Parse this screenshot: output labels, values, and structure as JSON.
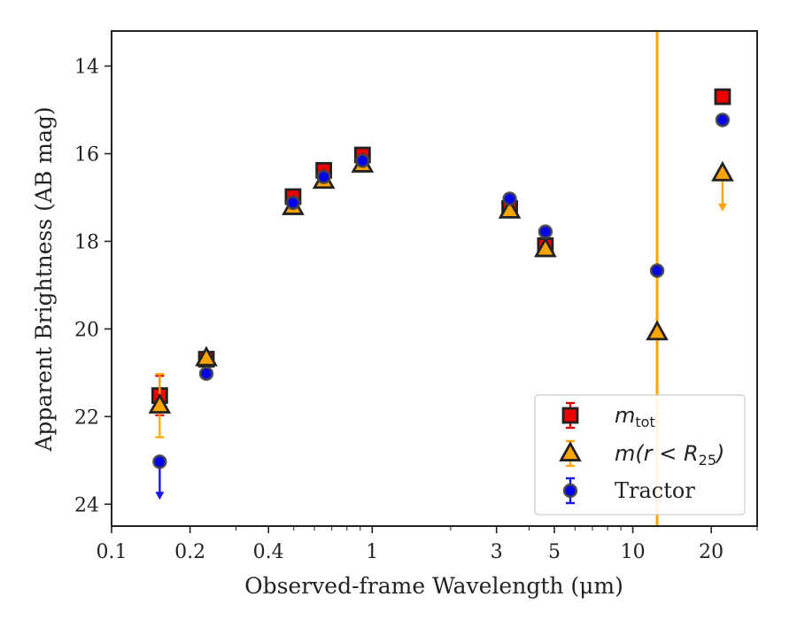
{
  "chart_data": {
    "type": "scatter",
    "xlabel": "Observed-frame Wavelength (μm)",
    "ylabel": "Apparent Brightness (AB mag)",
    "xscale": "log",
    "xlim": [
      0.1,
      30
    ],
    "ylim": [
      24.5,
      13.2
    ],
    "y_inverted": true,
    "xticks": [
      {
        "value": 0.1,
        "label": "0.1"
      },
      {
        "value": 0.2,
        "label": "0.2"
      },
      {
        "value": 0.4,
        "label": "0.4"
      },
      {
        "value": 1,
        "label": "1"
      },
      {
        "value": 3,
        "label": "3"
      },
      {
        "value": 5,
        "label": "5"
      },
      {
        "value": 10,
        "label": "10"
      },
      {
        "value": 20,
        "label": "20"
      }
    ],
    "yticks": [
      {
        "value": 14,
        "label": "14"
      },
      {
        "value": 16,
        "label": "16"
      },
      {
        "value": 18,
        "label": "18"
      },
      {
        "value": 20,
        "label": "20"
      },
      {
        "value": 22,
        "label": "22"
      },
      {
        "value": 24,
        "label": "24"
      }
    ],
    "legend_position": "lower-right",
    "vertical_line": {
      "x": 12.4,
      "color": "#FFA500"
    },
    "series": [
      {
        "name": "m_tot",
        "legend_main": "m",
        "legend_sub": "tot",
        "legend_tail": "",
        "marker": "square",
        "fill": "#EE0000",
        "edge": "#222222",
        "errcolor": "#DD0000",
        "points": [
          {
            "x": 0.153,
            "y": 21.52,
            "err": 0.45
          },
          {
            "x": 0.231,
            "y": 20.69
          },
          {
            "x": 0.497,
            "y": 16.98
          },
          {
            "x": 0.652,
            "y": 16.38
          },
          {
            "x": 0.918,
            "y": 16.03
          },
          {
            "x": 3.37,
            "y": 17.25
          },
          {
            "x": 4.62,
            "y": 18.1
          },
          {
            "x": 22.1,
            "y": 14.7
          }
        ]
      },
      {
        "name": "m(r < R_25)",
        "legend_main": "m(r < R",
        "legend_sub": "25",
        "legend_tail": ")",
        "marker": "triangle",
        "fill": "#FFA500",
        "edge": "#222222",
        "errcolor": "#FFA500",
        "points": [
          {
            "x": 0.153,
            "y": 21.75,
            "err": 0.72
          },
          {
            "x": 0.231,
            "y": 20.67
          },
          {
            "x": 0.497,
            "y": 17.22
          },
          {
            "x": 0.652,
            "y": 16.62
          },
          {
            "x": 0.918,
            "y": 16.25
          },
          {
            "x": 3.37,
            "y": 17.3
          },
          {
            "x": 4.62,
            "y": 18.18
          },
          {
            "x": 12.4,
            "y": 20.08
          },
          {
            "x": 22.1,
            "y": 16.45,
            "upper_limit": true
          }
        ]
      },
      {
        "name": "Tractor",
        "legend_main": "Tractor",
        "marker": "circle",
        "fill": "#0000EE",
        "edge": "#444444",
        "errcolor": "#1515EE",
        "points": [
          {
            "x": 0.153,
            "y": 23.03,
            "upper_limit": true
          },
          {
            "x": 0.231,
            "y": 21.02
          },
          {
            "x": 0.497,
            "y": 17.12
          },
          {
            "x": 0.652,
            "y": 16.53
          },
          {
            "x": 0.918,
            "y": 16.16
          },
          {
            "x": 3.37,
            "y": 17.03
          },
          {
            "x": 4.62,
            "y": 17.78
          },
          {
            "x": 12.4,
            "y": 18.67
          },
          {
            "x": 22.1,
            "y": 15.23
          }
        ]
      }
    ]
  }
}
